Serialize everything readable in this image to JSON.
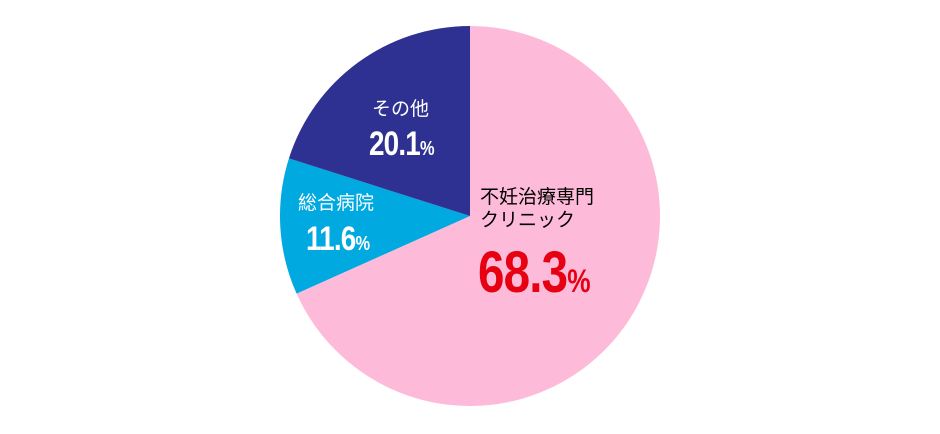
{
  "chart_data": {
    "type": "pie",
    "start": "top",
    "direction": "clockwise",
    "slices": [
      {
        "label": "不妊治療専門クリニック",
        "label_lines": [
          "不妊治療専門",
          "クリニック"
        ],
        "value": 68.3,
        "display": "68.3",
        "unit": "%",
        "color": "#fdbbd9",
        "label_color": "#000000",
        "value_color": "#e60012"
      },
      {
        "label": "総合病院",
        "label_lines": [
          "総合病院"
        ],
        "value": 11.6,
        "display": "11.6",
        "unit": "%",
        "color": "#00a9e0",
        "label_color": "#ffffff",
        "value_color": "#ffffff"
      },
      {
        "label": "その他",
        "label_lines": [
          "その他"
        ],
        "value": 20.1,
        "display": "20.1",
        "unit": "%",
        "color": "#2e3192",
        "label_color": "#ffffff",
        "value_color": "#ffffff"
      }
    ]
  }
}
